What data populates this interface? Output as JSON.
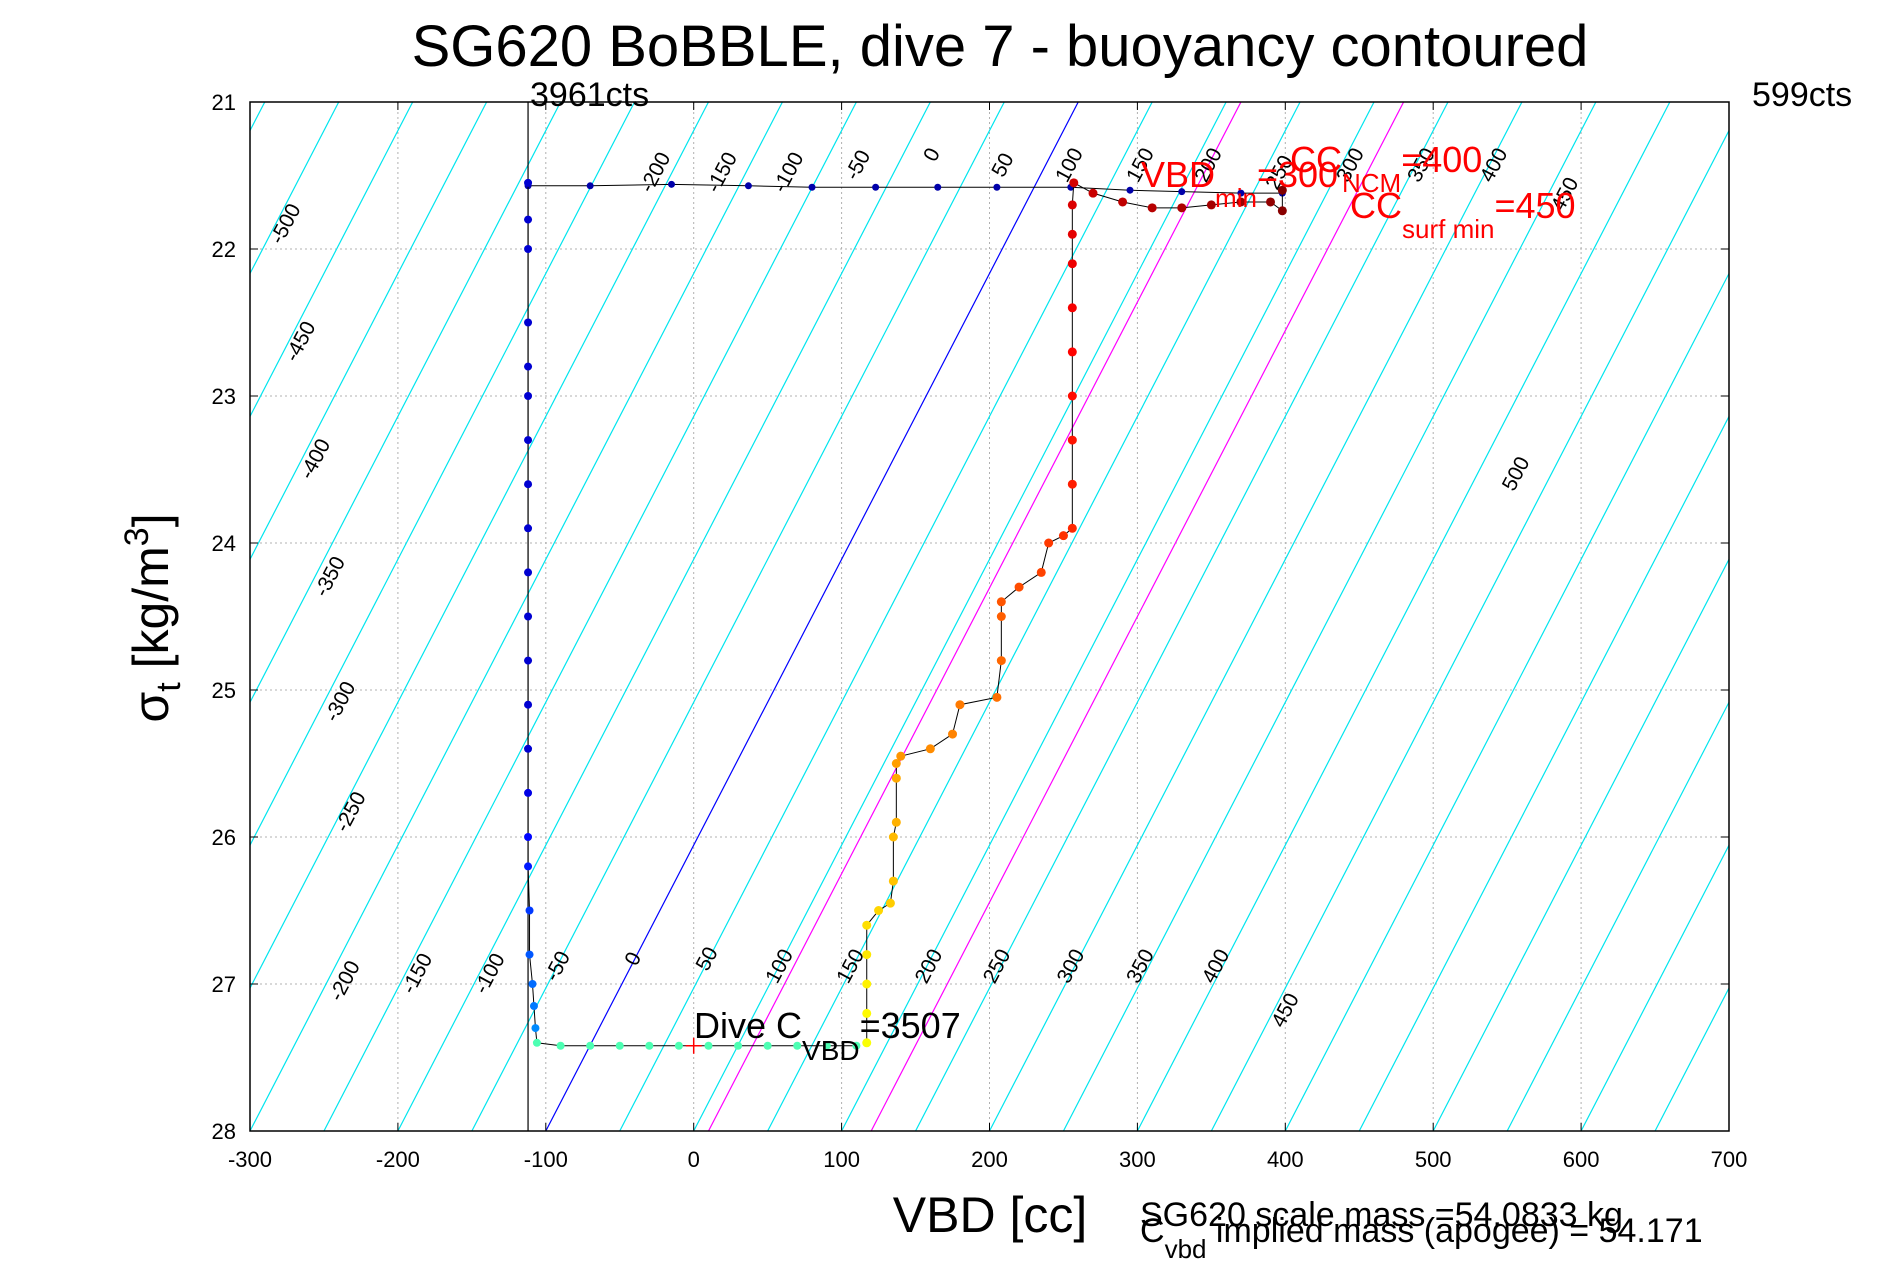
{
  "chart_data": {
    "type": "scatter",
    "title": "SG620 BoBBLE, dive 7 - buoyancy contoured",
    "xlabel": "VBD [cc]",
    "ylabel": {
      "main": "σ",
      "sub": "t",
      "unit_pre": " [kg/m",
      "unit_sup": "3",
      "unit_post": "]"
    },
    "xlim": [
      -300,
      700
    ],
    "ylim": [
      21,
      28
    ],
    "y_reversed": true,
    "grid": true,
    "xticks": [
      "-300",
      "-200",
      "-100",
      "0",
      "100",
      "200",
      "300",
      "400",
      "500",
      "600",
      "700"
    ],
    "yticks": [
      "21",
      "22",
      "23",
      "24",
      "25",
      "26",
      "27",
      "28"
    ],
    "top_labels": {
      "left": "3961cts",
      "right": "599cts"
    },
    "vbd_min_line": -112,
    "buoyancy_contours": {
      "color": "#00e5ee",
      "levels": [
        -500,
        -450,
        -400,
        -350,
        -300,
        -250,
        -200,
        -150,
        -100,
        -50,
        0,
        50,
        100,
        150,
        200,
        250,
        300,
        350,
        400,
        450,
        500
      ],
      "zero_line_color": "#0000ff",
      "magenta_lines": [
        300,
        400
      ],
      "magenta_color": "#ff00ff"
    },
    "contour_labels_top": [
      "-500",
      "-450",
      "-400",
      "-350",
      "-300",
      "-250",
      "-200",
      "-150",
      "-100",
      "-50",
      "0",
      "50",
      "100",
      "150",
      "200",
      "250",
      "300",
      "350",
      "400",
      "450",
      "500"
    ],
    "contour_labels_bottom": [
      "-200",
      "-150",
      "-100",
      "-50",
      "0",
      "50",
      "100",
      "150",
      "200",
      "250",
      "300",
      "350",
      "400",
      "450"
    ],
    "dive_series": {
      "name": "dive",
      "points": [
        [
          -112,
          21.55
        ],
        [
          -112,
          21.8
        ],
        [
          -112,
          22.0
        ],
        [
          -112,
          22.5
        ],
        [
          -112,
          22.8
        ],
        [
          -112,
          23.0
        ],
        [
          -112,
          23.3
        ],
        [
          -112,
          23.6
        ],
        [
          -112,
          23.9
        ],
        [
          -112,
          24.2
        ],
        [
          -112,
          24.5
        ],
        [
          -112,
          24.8
        ],
        [
          -112,
          25.1
        ],
        [
          -112,
          25.4
        ],
        [
          -112,
          25.7
        ],
        [
          -112,
          26.0
        ],
        [
          -112,
          26.2
        ],
        [
          -111,
          26.5
        ],
        [
          -111,
          26.8
        ],
        [
          -109,
          27.0
        ],
        [
          -108,
          27.15
        ],
        [
          -107,
          27.3
        ],
        [
          -106,
          27.4
        ],
        [
          -90,
          27.42
        ],
        [
          -70,
          27.42
        ],
        [
          -50,
          27.42
        ],
        [
          -30,
          27.42
        ],
        [
          -10,
          27.42
        ],
        [
          10,
          27.42
        ],
        [
          30,
          27.42
        ],
        [
          50,
          27.42
        ],
        [
          70,
          27.42
        ],
        [
          90,
          27.42
        ],
        [
          110,
          27.42
        ]
      ]
    },
    "climb_series": {
      "name": "climb",
      "points": [
        [
          117,
          27.4
        ],
        [
          117,
          27.2
        ],
        [
          117,
          27.0
        ],
        [
          117,
          26.8
        ],
        [
          117,
          26.6
        ],
        [
          125,
          26.5
        ],
        [
          133,
          26.45
        ],
        [
          135,
          26.3
        ],
        [
          135,
          26.0
        ],
        [
          137,
          25.9
        ],
        [
          137,
          25.6
        ],
        [
          137,
          25.5
        ],
        [
          140,
          25.45
        ],
        [
          160,
          25.4
        ],
        [
          175,
          25.3
        ],
        [
          180,
          25.1
        ],
        [
          205,
          25.05
        ],
        [
          208,
          24.8
        ],
        [
          208,
          24.5
        ],
        [
          208,
          24.4
        ],
        [
          220,
          24.3
        ],
        [
          235,
          24.2
        ],
        [
          240,
          24.0
        ],
        [
          250,
          23.95
        ],
        [
          256,
          23.9
        ],
        [
          256,
          23.6
        ],
        [
          256,
          23.3
        ],
        [
          256,
          23.0
        ],
        [
          256,
          22.7
        ],
        [
          256,
          22.4
        ],
        [
          256,
          22.1
        ],
        [
          256,
          21.9
        ],
        [
          256,
          21.7
        ],
        [
          257,
          21.55
        ],
        [
          270,
          21.62
        ],
        [
          290,
          21.68
        ],
        [
          310,
          21.72
        ],
        [
          330,
          21.72
        ],
        [
          350,
          21.7
        ],
        [
          370,
          21.68
        ],
        [
          390,
          21.68
        ],
        [
          398,
          21.74
        ],
        [
          398,
          21.6
        ]
      ]
    },
    "surface_series": {
      "name": "surface",
      "points": [
        [
          -112,
          21.57
        ],
        [
          -70,
          21.57
        ],
        [
          -15,
          21.56
        ],
        [
          37,
          21.57
        ],
        [
          80,
          21.58
        ],
        [
          123,
          21.58
        ],
        [
          165,
          21.58
        ],
        [
          205,
          21.58
        ],
        [
          255,
          21.58
        ],
        [
          295,
          21.6
        ],
        [
          330,
          21.61
        ],
        [
          370,
          21.62
        ],
        [
          398,
          21.62
        ]
      ]
    },
    "annotations": {
      "dive_c_vbd": {
        "pre": "Dive C",
        "sub": "VBD",
        "post": "=3507",
        "x": 0,
        "y": 27.42
      },
      "vbd_min": {
        "pre": "VBD",
        "sub": "min",
        "post": "=300"
      },
      "cc_ncm": {
        "pre": "CC",
        "sub": "NCM",
        "post": "=400"
      },
      "cc_surf_min": {
        "pre": "CC",
        "sub": "surf min",
        "post": "=450"
      },
      "annotation_color": "#ff0000"
    },
    "footer": {
      "scale_mass": "SG620 scale mass =54.0833 kg",
      "implied_mass": {
        "pre": "C",
        "sub": "vbd",
        "post": " implied mass (apogee) = 54.171"
      }
    }
  }
}
